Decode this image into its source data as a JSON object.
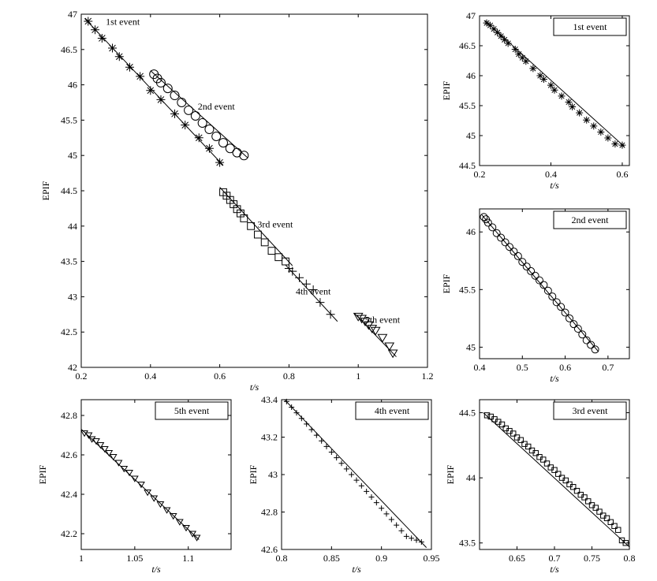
{
  "chart_data": [
    {
      "id": "main",
      "type": "scatter",
      "title": "",
      "xlabel": "t/s",
      "ylabel": "EPIF",
      "xlim": [
        0.2,
        1.2
      ],
      "ylim": [
        42,
        47
      ],
      "xticks": [
        "0.2",
        "0.4",
        "0.6",
        "0.8",
        "1",
        "1.2"
      ],
      "yticks": [
        "42",
        "42.5",
        "43",
        "43.5",
        "44",
        "44.5",
        "45",
        "45.5",
        "46",
        "46.5",
        "47"
      ],
      "grid": false,
      "legend": "none",
      "series": [
        {
          "marker": "star",
          "x": [
            0.22,
            0.24,
            0.26,
            0.29,
            0.31,
            0.34,
            0.37,
            0.4,
            0.43,
            0.47,
            0.5,
            0.54,
            0.57,
            0.6
          ],
          "y": [
            46.9,
            46.78,
            46.66,
            46.52,
            46.4,
            46.25,
            46.12,
            45.92,
            45.79,
            45.59,
            45.43,
            45.25,
            45.1,
            44.9
          ],
          "fit": [
            [
              0.21,
              46.94
            ],
            [
              0.61,
              44.86
            ]
          ]
        },
        {
          "marker": "circle",
          "x": [
            0.41,
            0.42,
            0.43,
            0.45,
            0.47,
            0.49,
            0.51,
            0.53,
            0.55,
            0.57,
            0.59,
            0.61,
            0.63,
            0.65,
            0.67
          ],
          "y": [
            46.15,
            46.09,
            46.03,
            45.95,
            45.85,
            45.75,
            45.64,
            45.56,
            45.46,
            45.37,
            45.27,
            45.18,
            45.1,
            45.04,
            45.0
          ],
          "fit": [
            [
              0.4,
              46.2
            ],
            [
              0.68,
              44.97
            ]
          ]
        },
        {
          "marker": "square",
          "x": [
            0.61,
            0.62,
            0.63,
            0.64,
            0.65,
            0.66,
            0.67,
            0.69,
            0.71,
            0.73,
            0.75,
            0.77,
            0.79
          ],
          "y": [
            44.48,
            44.43,
            44.37,
            44.31,
            44.24,
            44.18,
            44.11,
            44.0,
            43.88,
            43.77,
            43.65,
            43.56,
            43.5
          ],
          "fit": [
            [
              0.6,
              44.55
            ],
            [
              0.81,
              43.44
            ]
          ]
        },
        {
          "marker": "plus",
          "x": [
            0.8,
            0.81,
            0.83,
            0.85,
            0.87,
            0.89,
            0.92
          ],
          "y": [
            43.4,
            43.36,
            43.27,
            43.18,
            43.1,
            42.92,
            42.75
          ],
          "fit": [
            [
              0.79,
              43.45
            ],
            [
              0.94,
              42.65
            ]
          ]
        },
        {
          "marker": "triangle",
          "x": [
            1.0,
            1.01,
            1.02,
            1.03,
            1.04,
            1.05,
            1.07,
            1.09,
            1.1
          ],
          "y": [
            42.72,
            42.69,
            42.65,
            42.6,
            42.55,
            42.52,
            42.42,
            42.3,
            42.2
          ],
          "fit": [
            [
              0.99,
              42.76
            ],
            [
              1.11,
              42.15
            ]
          ]
        }
      ],
      "annotations": [
        {
          "text": "1st event",
          "x": 0.32,
          "y": 46.85
        },
        {
          "text": "2nd event",
          "x": 0.59,
          "y": 45.65
        },
        {
          "text": "3rd event",
          "x": 0.76,
          "y": 43.98
        },
        {
          "text": "4th event",
          "x": 0.87,
          "y": 43.03
        },
        {
          "text": "5th event",
          "x": 1.07,
          "y": 42.63
        }
      ]
    },
    {
      "id": "first",
      "type": "scatter",
      "title": "",
      "legend_label": "1st event",
      "legend": "top-right",
      "xlabel": "t/s",
      "ylabel": "EPIF",
      "xlim": [
        0.2,
        0.62
      ],
      "ylim": [
        44.5,
        47
      ],
      "xticks": [
        "0.2",
        "0.4",
        "0.6"
      ],
      "yticks": [
        "44.5",
        "45",
        "45.5",
        "46",
        "46.5",
        "47"
      ],
      "grid": false,
      "series": [
        {
          "marker": "star",
          "x": [
            0.22,
            0.23,
            0.24,
            0.25,
            0.26,
            0.27,
            0.28,
            0.3,
            0.31,
            0.32,
            0.33,
            0.35,
            0.37,
            0.38,
            0.4,
            0.41,
            0.43,
            0.45,
            0.46,
            0.48,
            0.5,
            0.52,
            0.54,
            0.56,
            0.58,
            0.6
          ],
          "y": [
            46.88,
            46.84,
            46.78,
            46.72,
            46.66,
            46.6,
            46.54,
            46.44,
            46.36,
            46.3,
            46.24,
            46.12,
            46.0,
            45.94,
            45.84,
            45.76,
            45.66,
            45.56,
            45.48,
            45.38,
            45.26,
            45.16,
            45.06,
            44.96,
            44.86,
            44.84
          ],
          "fit": [
            [
              0.215,
              46.92
            ],
            [
              0.605,
              44.82
            ]
          ]
        }
      ]
    },
    {
      "id": "second",
      "type": "scatter",
      "title": "",
      "legend_label": "2nd event",
      "legend": "top-right",
      "xlabel": "t/s",
      "ylabel": "EPIF",
      "xlim": [
        0.4,
        0.75
      ],
      "ylim": [
        44.9,
        46.2
      ],
      "xticks": [
        "0.4",
        "0.5",
        "0.6",
        "0.7"
      ],
      "yticks": [
        "45",
        "45.5",
        "46"
      ],
      "grid": false,
      "series": [
        {
          "marker": "circle",
          "x": [
            0.41,
            0.415,
            0.42,
            0.43,
            0.44,
            0.45,
            0.46,
            0.47,
            0.48,
            0.49,
            0.5,
            0.51,
            0.52,
            0.53,
            0.54,
            0.55,
            0.56,
            0.57,
            0.58,
            0.59,
            0.6,
            0.61,
            0.62,
            0.63,
            0.64,
            0.65,
            0.66,
            0.67
          ],
          "y": [
            46.13,
            46.11,
            46.08,
            46.04,
            45.99,
            45.95,
            45.91,
            45.87,
            45.83,
            45.79,
            45.74,
            45.7,
            45.66,
            45.62,
            45.58,
            45.54,
            45.49,
            45.44,
            45.39,
            45.35,
            45.3,
            45.25,
            45.2,
            45.16,
            45.11,
            45.06,
            45.02,
            44.98
          ],
          "fit": [
            [
              0.405,
              46.15
            ],
            [
              0.678,
              44.96
            ]
          ]
        }
      ]
    },
    {
      "id": "fifth",
      "type": "scatter",
      "title": "",
      "legend_label": "5th event",
      "legend": "top-right",
      "xlabel": "t/s",
      "ylabel": "EPIF",
      "xlim": [
        1.0,
        1.14
      ],
      "ylim": [
        42.12,
        42.88
      ],
      "xticks": [
        "1",
        "1.05",
        "1.1"
      ],
      "yticks": [
        "42.2",
        "42.4",
        "42.6",
        "42.8"
      ],
      "grid": false,
      "series": [
        {
          "marker": "triangle",
          "x": [
            1.003,
            1.007,
            1.01,
            1.014,
            1.018,
            1.022,
            1.026,
            1.03,
            1.035,
            1.04,
            1.045,
            1.05,
            1.056,
            1.062,
            1.068,
            1.074,
            1.08,
            1.086,
            1.092,
            1.098,
            1.104,
            1.108
          ],
          "y": [
            42.71,
            42.7,
            42.68,
            42.67,
            42.65,
            42.63,
            42.61,
            42.59,
            42.56,
            42.53,
            42.51,
            42.48,
            42.45,
            42.41,
            42.38,
            42.35,
            42.32,
            42.29,
            42.26,
            42.23,
            42.2,
            42.18
          ],
          "fit": [
            [
              1.0,
              42.73
            ],
            [
              1.11,
              42.17
            ]
          ]
        }
      ]
    },
    {
      "id": "fourth",
      "type": "scatter",
      "title": "",
      "legend_label": "4th event",
      "legend": "top-right",
      "xlabel": "t/s",
      "ylabel": "EPIF",
      "xlim": [
        0.8,
        0.95
      ],
      "ylim": [
        42.6,
        43.4
      ],
      "xticks": [
        "0.8",
        "0.85",
        "0.9",
        "0.95"
      ],
      "yticks": [
        "42.6",
        "42.8",
        "43",
        "43.2",
        "43.4"
      ],
      "grid": false,
      "series": [
        {
          "marker": "plus",
          "x": [
            0.805,
            0.81,
            0.815,
            0.82,
            0.825,
            0.83,
            0.835,
            0.84,
            0.845,
            0.85,
            0.855,
            0.86,
            0.865,
            0.87,
            0.875,
            0.88,
            0.885,
            0.89,
            0.895,
            0.9,
            0.905,
            0.91,
            0.915,
            0.92,
            0.925,
            0.93,
            0.935,
            0.94
          ],
          "y": [
            43.39,
            43.36,
            43.33,
            43.3,
            43.27,
            43.24,
            43.21,
            43.18,
            43.15,
            43.12,
            43.09,
            43.06,
            43.03,
            43.0,
            42.97,
            42.94,
            42.91,
            42.88,
            42.85,
            42.82,
            42.79,
            42.76,
            42.73,
            42.7,
            42.67,
            42.66,
            42.65,
            42.64
          ],
          "fit": [
            [
              0.803,
              43.4
            ],
            [
              0.945,
              42.61
            ]
          ]
        }
      ]
    },
    {
      "id": "third",
      "type": "scatter",
      "title": "",
      "legend_label": "3rd event",
      "legend": "top-right",
      "xlabel": "t/s",
      "ylabel": "EPIF",
      "xlim": [
        0.6,
        0.8
      ],
      "ylim": [
        43.45,
        44.6
      ],
      "xticks": [
        "0.65",
        "0.7",
        "0.75",
        "0.8"
      ],
      "yticks": [
        "43.5",
        "44",
        "44.5"
      ],
      "grid": false,
      "series": [
        {
          "marker": "square",
          "x": [
            0.61,
            0.615,
            0.62,
            0.625,
            0.63,
            0.635,
            0.64,
            0.645,
            0.65,
            0.655,
            0.66,
            0.665,
            0.67,
            0.675,
            0.68,
            0.685,
            0.69,
            0.695,
            0.7,
            0.705,
            0.71,
            0.715,
            0.72,
            0.725,
            0.73,
            0.735,
            0.74,
            0.745,
            0.75,
            0.755,
            0.76,
            0.765,
            0.77,
            0.775,
            0.78,
            0.785,
            0.79,
            0.795
          ],
          "y": [
            44.48,
            44.47,
            44.45,
            44.43,
            44.41,
            44.38,
            44.36,
            44.34,
            44.31,
            44.29,
            44.26,
            44.24,
            44.21,
            44.19,
            44.16,
            44.14,
            44.11,
            44.08,
            44.06,
            44.03,
            44.0,
            43.98,
            43.95,
            43.93,
            43.9,
            43.87,
            43.85,
            43.82,
            43.79,
            43.77,
            43.74,
            43.71,
            43.69,
            43.66,
            43.63,
            43.6,
            43.52,
            43.5
          ],
          "fit": [
            [
              0.605,
              44.5
            ],
            [
              0.8,
              43.47
            ]
          ]
        }
      ]
    }
  ]
}
